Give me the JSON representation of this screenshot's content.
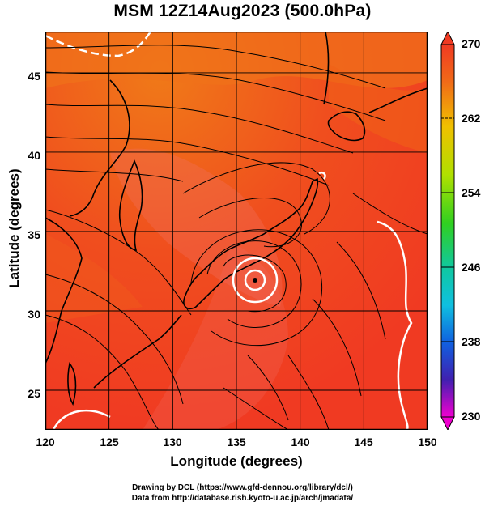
{
  "title": "MSM 12Z14Aug2023 (500.0hPa)",
  "axes": {
    "xlabel": "Longitude (degrees)",
    "ylabel": "Latitude  (degrees)",
    "x_ticks": [
      "120",
      "125",
      "130",
      "135",
      "140",
      "145",
      "150"
    ],
    "y_ticks": [
      "25",
      "30",
      "35",
      "40",
      "45"
    ]
  },
  "colorbar": {
    "labels": [
      "270",
      "262",
      "254",
      "246",
      "238",
      "230"
    ],
    "min": 230,
    "max": 270
  },
  "credits": {
    "line1": "Drawing by DCL (https://www.gfd-dennou.org/library/dcl/)",
    "line2": "Data from http://database.rish.kyoto-u.ac.jp/arch/jmadata/"
  },
  "map_data": {
    "lon_range": [
      120,
      150
    ],
    "lat_range": [
      22.5,
      47.6
    ],
    "grid_lon": [
      125,
      130,
      135,
      140,
      145
    ],
    "grid_lat": [
      25,
      30,
      35,
      40,
      45
    ],
    "field": "temperature (K) shaded, wind streamlines",
    "typhoon_center": [
      136.3,
      32.6
    ],
    "colors": {
      "warm": "#f0401e",
      "warmer_orange": "#f06a18",
      "contour": "#ffffff",
      "coast": "#000000"
    }
  }
}
